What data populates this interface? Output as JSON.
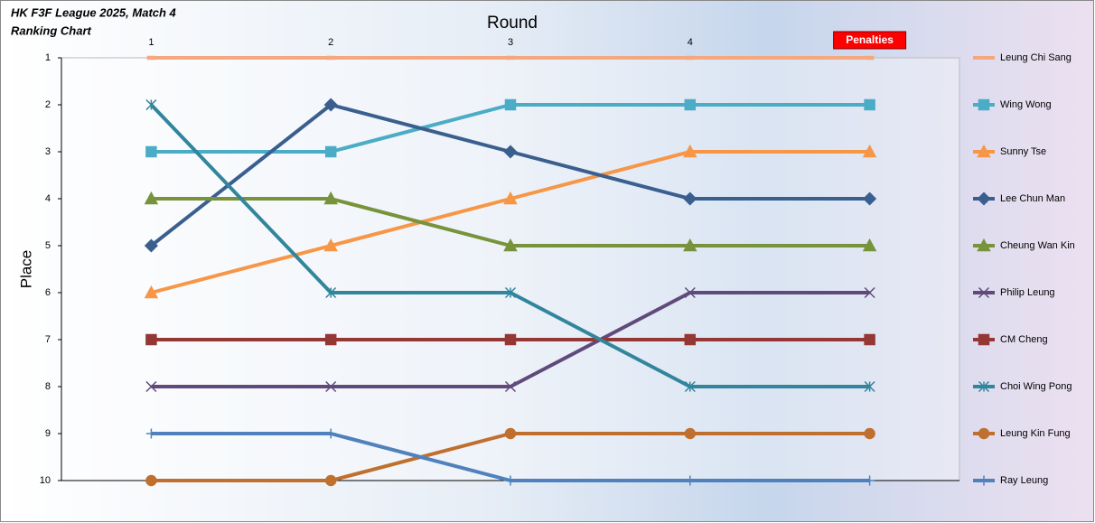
{
  "chart_data": {
    "type": "line",
    "title": "HK F3F League 2025, Match 4",
    "subtitle": "Ranking Chart",
    "x_label": "Round",
    "y_label": "Place",
    "categories": [
      "1",
      "2",
      "3",
      "4",
      "Penalties"
    ],
    "ylim": [
      1,
      10
    ],
    "yticks": [
      1,
      2,
      3,
      4,
      5,
      6,
      7,
      8,
      9,
      10
    ],
    "y_inverted": true,
    "legend": "right",
    "series": [
      {
        "name": "Leung Chi Sang",
        "color": "#f4a880",
        "marker": "none",
        "values": [
          1,
          1,
          1,
          1,
          1
        ]
      },
      {
        "name": "Wing Wong",
        "color": "#4bacc6",
        "marker": "square",
        "values": [
          3,
          3,
          2,
          2,
          2
        ]
      },
      {
        "name": "Sunny Tse",
        "color": "#f79646",
        "marker": "triangle",
        "values": [
          6,
          5,
          4,
          3,
          3
        ]
      },
      {
        "name": "Lee Chun Man",
        "color": "#3a5f8f",
        "marker": "diamond",
        "values": [
          5,
          2,
          3,
          4,
          4
        ]
      },
      {
        "name": "Cheung Wan Kin",
        "color": "#77933c",
        "marker": "triangle",
        "values": [
          4,
          4,
          5,
          5,
          5
        ]
      },
      {
        "name": "Philip Leung",
        "color": "#604a7b",
        "marker": "x",
        "values": [
          8,
          8,
          8,
          6,
          6
        ]
      },
      {
        "name": "CM Cheng",
        "color": "#953735",
        "marker": "square",
        "values": [
          7,
          7,
          7,
          7,
          7
        ]
      },
      {
        "name": "Choi Wing Pong",
        "color": "#31859c",
        "marker": "star",
        "values": [
          2,
          6,
          6,
          8,
          8
        ]
      },
      {
        "name": "Leung Kin Fung",
        "color": "#c0702e",
        "marker": "circle",
        "values": [
          10,
          10,
          9,
          9,
          9
        ]
      },
      {
        "name": "Ray Leung",
        "color": "#4f81bd",
        "marker": "plus",
        "values": [
          9,
          9,
          10,
          10,
          10
        ]
      }
    ]
  }
}
